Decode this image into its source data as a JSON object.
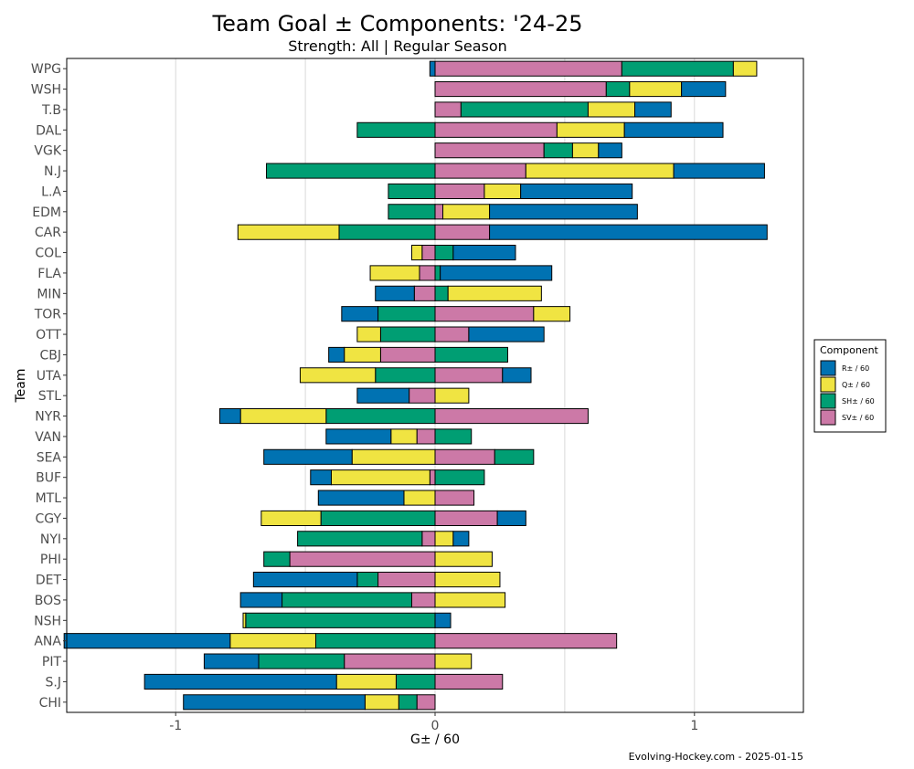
{
  "chart_data": {
    "type": "bar",
    "orientation": "horizontal",
    "stacked": "diverging",
    "title": "Team Goal ± Components: '24-25",
    "subtitle": "Strength: All  |  Regular Season",
    "xlabel": "G± / 60",
    "ylabel": "Team",
    "xlim": [
      -1.42,
      1.42
    ],
    "xticks": [
      -1,
      0,
      1
    ],
    "xtick_labels": [
      "-1",
      "0",
      "1"
    ],
    "grid": true,
    "caption": "Evolving-Hockey.com - 2025-01-15",
    "legend": {
      "title": "Component",
      "placement": "right",
      "items": [
        {
          "key": "R",
          "label": "R± / 60",
          "color": "#0072B2"
        },
        {
          "key": "Q",
          "label": "Q± / 60",
          "color": "#F0E442"
        },
        {
          "key": "SH",
          "label": "SH± / 60",
          "color": "#009E73"
        },
        {
          "key": "SV",
          "label": "SV± / 60",
          "color": "#CC79A7"
        }
      ]
    },
    "stack_order": [
      "SV",
      "SH",
      "Q",
      "R"
    ],
    "teams": [
      {
        "team": "WPG",
        "R": -0.02,
        "Q": 0.09,
        "SH": 0.43,
        "SV": 0.72
      },
      {
        "team": "WSH",
        "R": 0.17,
        "Q": 0.2,
        "SH": 0.09,
        "SV": 0.66
      },
      {
        "team": "T.B",
        "R": 0.14,
        "Q": 0.18,
        "SH": 0.49,
        "SV": 0.1
      },
      {
        "team": "DAL",
        "R": 0.38,
        "Q": 0.26,
        "SH": -0.3,
        "SV": 0.47
      },
      {
        "team": "VGK",
        "R": 0.09,
        "Q": 0.1,
        "SH": 0.11,
        "SV": 0.42
      },
      {
        "team": "N.J",
        "R": 0.35,
        "Q": 0.57,
        "SH": -0.65,
        "SV": 0.35
      },
      {
        "team": "L.A",
        "R": 0.43,
        "Q": 0.14,
        "SH": -0.18,
        "SV": 0.19
      },
      {
        "team": "EDM",
        "R": 0.57,
        "Q": 0.18,
        "SH": -0.18,
        "SV": 0.03
      },
      {
        "team": "CAR",
        "R": 1.07,
        "Q": -0.39,
        "SH": -0.37,
        "SV": 0.21
      },
      {
        "team": "COL",
        "R": 0.24,
        "Q": -0.04,
        "SH": 0.07,
        "SV": -0.05
      },
      {
        "team": "FLA",
        "R": 0.43,
        "Q": -0.19,
        "SH": 0.02,
        "SV": -0.06
      },
      {
        "team": "MIN",
        "R": -0.15,
        "Q": 0.36,
        "SH": 0.05,
        "SV": -0.08
      },
      {
        "team": "TOR",
        "R": -0.14,
        "Q": 0.14,
        "SH": -0.22,
        "SV": 0.38
      },
      {
        "team": "OTT",
        "R": 0.29,
        "Q": -0.09,
        "SH": -0.21,
        "SV": 0.13
      },
      {
        "team": "CBJ",
        "R": -0.06,
        "Q": -0.14,
        "SH": 0.28,
        "SV": -0.21
      },
      {
        "team": "UTA",
        "R": 0.11,
        "Q": -0.29,
        "SH": -0.23,
        "SV": 0.26
      },
      {
        "team": "STL",
        "R": -0.2,
        "Q": 0.13,
        "SH": 0.0,
        "SV": -0.1
      },
      {
        "team": "NYR",
        "R": -0.08,
        "Q": -0.33,
        "SH": -0.42,
        "SV": 0.59
      },
      {
        "team": "VAN",
        "R": -0.25,
        "Q": -0.1,
        "SH": 0.14,
        "SV": -0.07
      },
      {
        "team": "SEA",
        "R": -0.34,
        "Q": -0.32,
        "SH": 0.15,
        "SV": 0.23
      },
      {
        "team": "BUF",
        "R": -0.08,
        "Q": -0.38,
        "SH": 0.19,
        "SV": -0.02
      },
      {
        "team": "MTL",
        "R": -0.33,
        "Q": -0.12,
        "SH": 0.0,
        "SV": 0.15
      },
      {
        "team": "CGY",
        "R": 0.11,
        "Q": -0.23,
        "SH": -0.44,
        "SV": 0.24
      },
      {
        "team": "NYI",
        "R": 0.06,
        "Q": 0.07,
        "SH": -0.48,
        "SV": -0.05
      },
      {
        "team": "PHI",
        "R": 0.0,
        "Q": 0.22,
        "SH": -0.1,
        "SV": -0.56
      },
      {
        "team": "DET",
        "R": -0.4,
        "Q": 0.25,
        "SH": -0.08,
        "SV": -0.22
      },
      {
        "team": "BOS",
        "R": -0.16,
        "Q": 0.27,
        "SH": -0.5,
        "SV": -0.09
      },
      {
        "team": "NSH",
        "R": 0.06,
        "Q": -0.01,
        "SH": -0.73,
        "SV": 0.0
      },
      {
        "team": "ANA",
        "R": -0.64,
        "Q": -0.33,
        "SH": -0.46,
        "SV": 0.7
      },
      {
        "team": "PIT",
        "R": -0.21,
        "Q": 0.14,
        "SH": -0.33,
        "SV": -0.35
      },
      {
        "team": "S.J",
        "R": -0.74,
        "Q": -0.23,
        "SH": -0.15,
        "SV": 0.26
      },
      {
        "team": "CHI",
        "R": -0.7,
        "Q": -0.13,
        "SH": -0.07,
        "SV": -0.07
      }
    ]
  }
}
